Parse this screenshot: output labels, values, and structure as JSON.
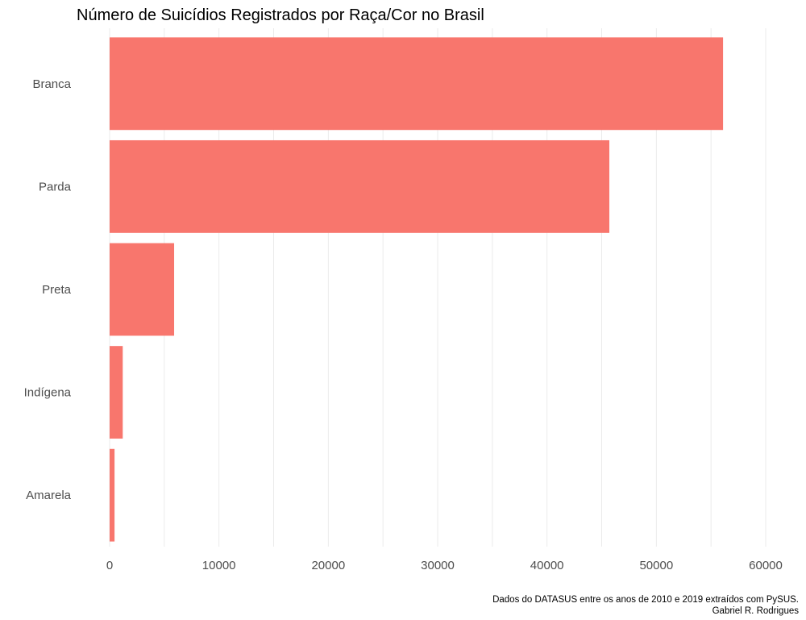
{
  "chart_data": {
    "type": "bar",
    "orientation": "horizontal",
    "title": "Número de Suicídios Registrados por Raça/Cor no Brasil",
    "xlabel": "",
    "ylabel": "",
    "categories": [
      "Branca",
      "Parda",
      "Preta",
      "Indígena",
      "Amarela"
    ],
    "values": [
      56100,
      45700,
      5900,
      1200,
      450
    ],
    "xlim": [
      0,
      60000
    ],
    "x_ticks": [
      0,
      10000,
      20000,
      30000,
      40000,
      50000,
      60000
    ],
    "x_tick_labels": [
      "0",
      "10000",
      "20000",
      "30000",
      "40000",
      "50000",
      "60000"
    ],
    "grid": true,
    "legend": "none",
    "bar_color": "#F8766D",
    "caption_lines": [
      "Dados do DATASUS entre os anos de 2010 e 2019 extraídos com PySUS.",
      "Gabriel R. Rodrigues"
    ]
  }
}
